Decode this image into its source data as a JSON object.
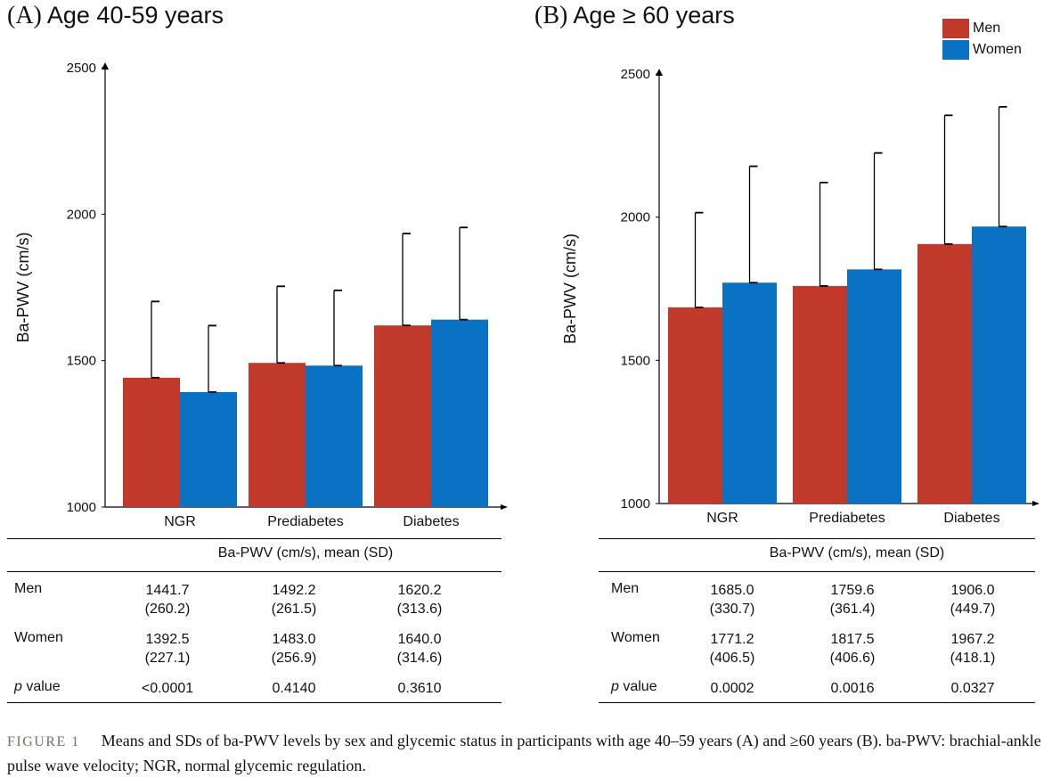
{
  "chart_data": [
    {
      "type": "bar",
      "panel_letter": "(A)",
      "title": "Age 40-59 years",
      "ylabel": "Ba-PWV (cm/s)",
      "ylim": [
        1000,
        2500
      ],
      "yticks": [
        "1000",
        "1500",
        "2000",
        "2500"
      ],
      "categories": [
        "NGR",
        "Prediabetes",
        "Diabetes"
      ],
      "series": [
        {
          "name": "Men",
          "color": "#C0392B",
          "values": [
            1441.7,
            1492.2,
            1620.2
          ],
          "sd": [
            260.2,
            261.5,
            313.6
          ]
        },
        {
          "name": "Women",
          "color": "#0A72C2",
          "values": [
            1392.5,
            1483.0,
            1640.0
          ],
          "sd": [
            227.1,
            256.9,
            314.6
          ]
        }
      ]
    },
    {
      "type": "bar",
      "panel_letter": "(B)",
      "title": "Age ≥ 60 years",
      "ylabel": "Ba-PWV (cm/s)",
      "ylim": [
        1000,
        2500
      ],
      "yticks": [
        "1000",
        "1500",
        "2000",
        "2500"
      ],
      "categories": [
        "NGR",
        "Prediabetes",
        "Diabetes"
      ],
      "series": [
        {
          "name": "Men",
          "color": "#C0392B",
          "values": [
            1685.0,
            1759.6,
            1906.0
          ],
          "sd": [
            330.7,
            361.4,
            449.7
          ]
        },
        {
          "name": "Women",
          "color": "#0A72C2",
          "values": [
            1771.2,
            1817.5,
            1967.2
          ],
          "sd": [
            406.5,
            406.6,
            418.1
          ]
        }
      ]
    }
  ],
  "legend": {
    "men": "Men",
    "women": "Women"
  },
  "tables": {
    "a": {
      "header": "Ba-PWV (cm/s), mean (SD)",
      "men_label": "Men",
      "women_label": "Women",
      "p_label": "p",
      "p_label_rest": " value",
      "men_mean": [
        "1441.7",
        "1492.2",
        "1620.2"
      ],
      "men_sd": [
        "(260.2)",
        "(261.5)",
        "(313.6)"
      ],
      "women_mean": [
        "1392.5",
        "1483.0",
        "1640.0"
      ],
      "women_sd": [
        "(227.1)",
        "(256.9)",
        "(314.6)"
      ],
      "p_values": [
        "<0.0001",
        "0.4140",
        "0.3610"
      ]
    },
    "b": {
      "header": "Ba-PWV (cm/s), mean (SD)",
      "men_label": "Men",
      "women_label": "Women",
      "p_label": "p",
      "p_label_rest": " value",
      "men_mean": [
        "1685.0",
        "1759.6",
        "1906.0"
      ],
      "men_sd": [
        "(330.7)",
        "(361.4)",
        "(449.7)"
      ],
      "women_mean": [
        "1771.2",
        "1817.5",
        "1967.2"
      ],
      "women_sd": [
        "(406.5)",
        "(406.6)",
        "(418.1)"
      ],
      "p_values": [
        "0.0002",
        "0.0016",
        "0.0327"
      ]
    }
  },
  "caption": {
    "label": "FIGURE 1",
    "text": "Means and SDs of ba-PWV levels by sex and glycemic status in participants with age 40–59 years (A) and ≥60 years (B). ba-PWV: brachial-ankle pulse wave velocity; NGR, normal glycemic regulation."
  }
}
